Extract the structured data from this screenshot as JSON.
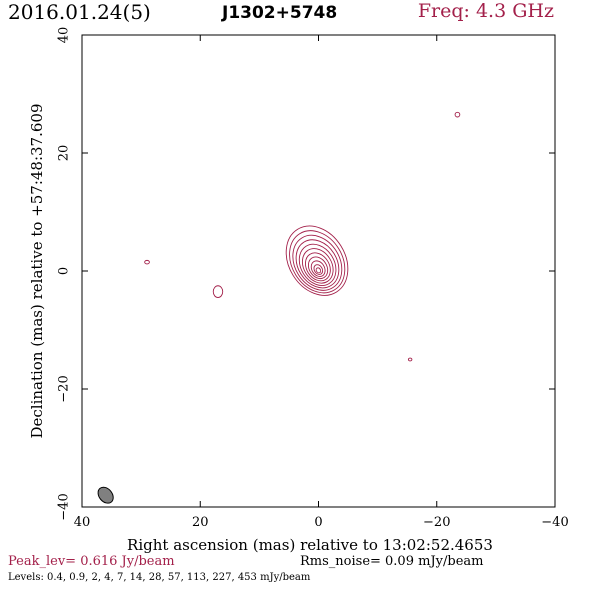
{
  "header": {
    "date": "2016.01.24(5)",
    "source": "J1302+5748",
    "freq": "Freq: 4.3 GHz"
  },
  "footer": {
    "peak": "Peak_lev=  0.616 Jy/beam",
    "rms": "Rms_noise= 0.09 mJy/beam",
    "levels": "Levels: 0.4, 0.9,   2,   4,   7,  14,  28,  57, 113, 227, 453 mJy/beam"
  },
  "colors": {
    "contour": "#a3204a",
    "beam": "#808080",
    "axis": "#000000"
  },
  "chart_data": {
    "type": "contour",
    "xlabel": "Right ascension (mas) relative to 13:02:52.4653",
    "ylabel": "Declination (mas) relative to +57:48:37.609",
    "xlim": [
      40,
      -40
    ],
    "ylim": [
      -40,
      40
    ],
    "x_ticks": [
      40,
      20,
      0,
      -20,
      -40
    ],
    "y_ticks": [
      -40,
      -20,
      0,
      20,
      40
    ],
    "x_tick_labels": [
      "40",
      "20",
      "0",
      "−20",
      "−40"
    ],
    "y_tick_labels": [
      "−40",
      "−20",
      "0",
      "20",
      "40"
    ],
    "levels_mJy": [
      0.4,
      0.9,
      2,
      4,
      7,
      14,
      28,
      57,
      113,
      227,
      453
    ],
    "peak_Jy_per_beam": 0.616,
    "rms_mJy_per_beam": 0.09,
    "main_component": {
      "center": [
        0,
        0
      ],
      "outer_extent": {
        "x_min": -4.5,
        "x_max": 5,
        "y_min": -4.5,
        "y_max": 8
      }
    },
    "small_features": [
      {
        "x": 29,
        "y": 1.5,
        "rx": 0.4,
        "ry": 0.3
      },
      {
        "x": 17,
        "y": -3.5,
        "rx": 0.8,
        "ry": 1.0
      },
      {
        "x": -23.5,
        "y": 26.5,
        "rx": 0.4,
        "ry": 0.4
      },
      {
        "x": -15.5,
        "y": -15,
        "rx": 0.3,
        "ry": 0.25
      }
    ],
    "beam": {
      "x": 36,
      "y": -38,
      "major": 3.0,
      "minor": 2.2,
      "pa_deg": -40
    }
  }
}
